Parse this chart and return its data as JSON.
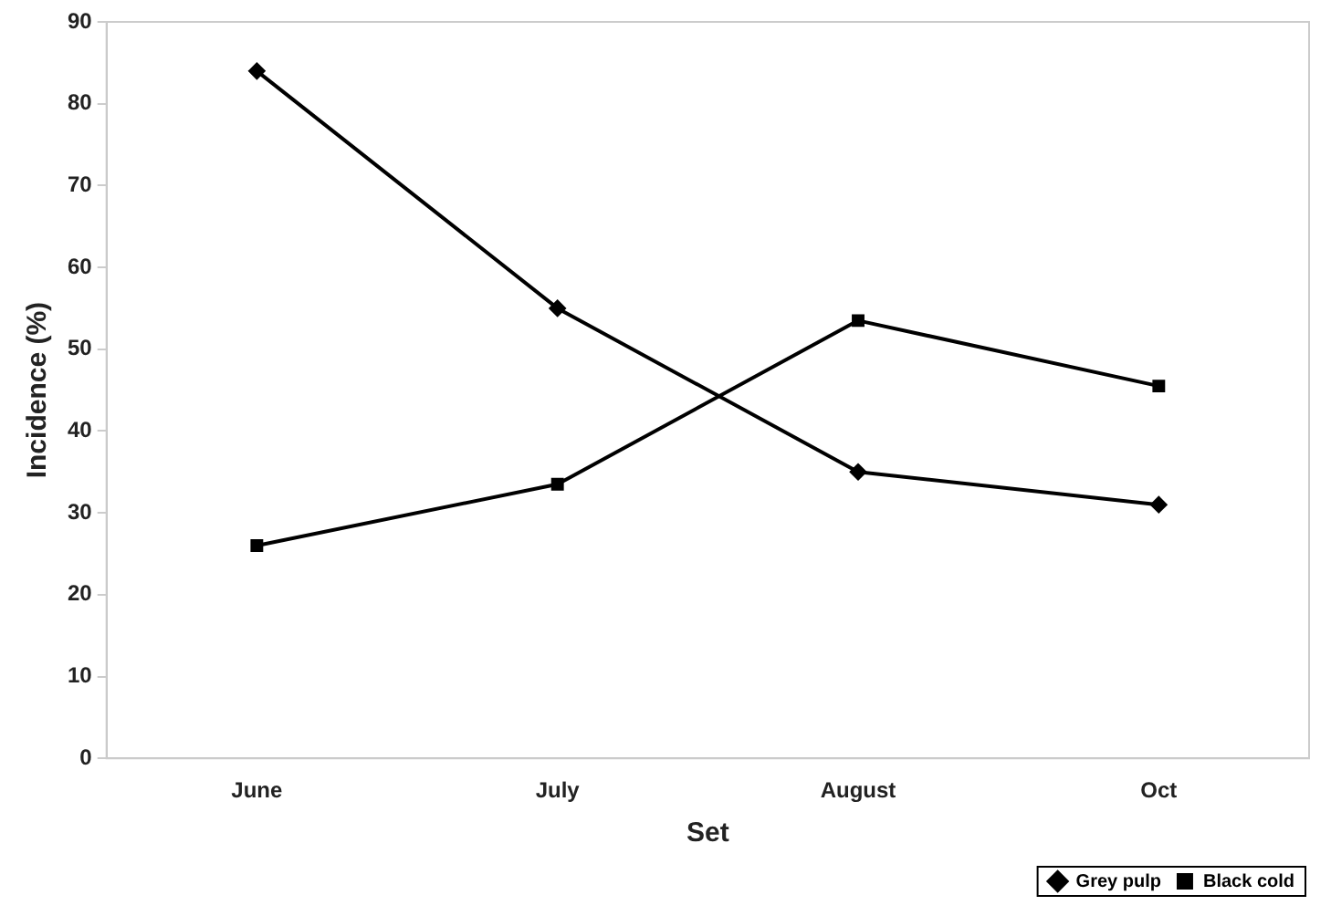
{
  "chart_data": {
    "type": "line",
    "xlabel": "Set",
    "ylabel": "Incidence (%)",
    "categories": [
      "June",
      "July",
      "August",
      "Oct"
    ],
    "series": [
      {
        "name": "Grey pulp",
        "color": "#000000",
        "marker": "diamond",
        "values": [
          84,
          55,
          35,
          31
        ]
      },
      {
        "name": "Black cold",
        "color": "#000000",
        "marker": "square",
        "values": [
          26,
          33.5,
          53.5,
          45.5
        ]
      }
    ],
    "ylim": [
      0,
      90
    ],
    "yticks": [
      0,
      10,
      20,
      30,
      40,
      50,
      60,
      70,
      80,
      90
    ],
    "grid": false,
    "legend": "bottom",
    "line_style": "solid"
  }
}
